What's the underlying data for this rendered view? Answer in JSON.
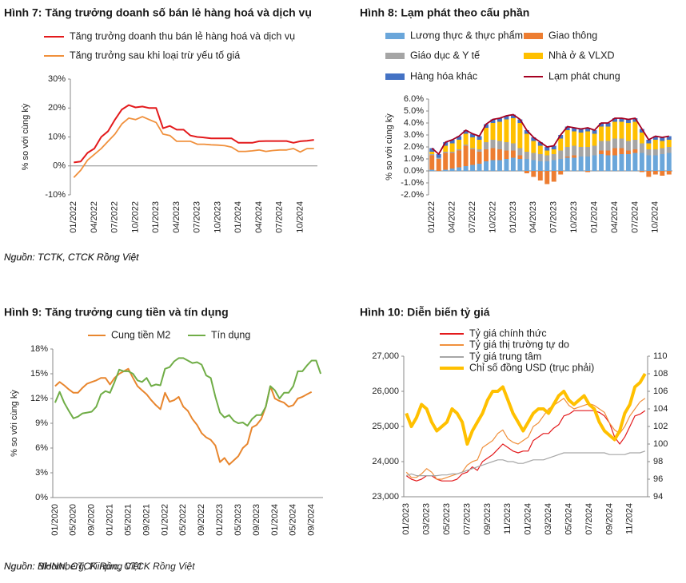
{
  "chart_data": [
    {
      "type": "line",
      "title": "Hình 7: Tăng trưởng doanh số bán lẻ hàng hoá và dịch vụ",
      "y_label": "% so với cùng kỳ",
      "source": "Nguồn: TCTK, CTCK Rồng Việt",
      "categories": [
        "01/2022",
        null,
        null,
        "04/2022",
        null,
        null,
        "07/2022",
        null,
        null,
        "10/2022",
        null,
        null,
        "01/2023",
        null,
        null,
        "04/2023",
        null,
        null,
        "07/2023",
        null,
        null,
        "10/2023",
        null,
        null,
        "01/2024",
        null,
        null,
        "04/2024",
        null,
        null,
        "07/2024",
        null,
        null,
        "10/2024",
        null,
        null
      ],
      "series": [
        {
          "name": "Tăng trưởng doanh thu bán lẻ hàng hoá và dịch vụ",
          "color": "#e31a1c",
          "values": [
            1.2,
            1.5,
            4.5,
            6,
            10,
            12,
            16,
            19.5,
            21,
            20.2,
            20.5,
            20,
            20,
            13,
            13.8,
            12.5,
            12.5,
            10.5,
            10,
            9.8,
            9.5,
            9.5,
            9.5,
            9.5,
            8,
            8,
            8,
            8.5,
            8.6,
            8.6,
            8.6,
            8.6,
            8,
            8.5,
            8.7,
            9
          ]
        },
        {
          "name": "Tăng trưởng sau khi loại trừ yếu tố giá",
          "color": "#f0903c",
          "values": [
            -4,
            -1.5,
            2,
            4,
            6,
            8.5,
            11,
            14.5,
            16.5,
            16,
            17,
            16,
            15,
            11,
            10.5,
            8.5,
            8.5,
            8.5,
            7.5,
            7.5,
            7.3,
            7.2,
            7,
            6.5,
            5,
            5,
            5.2,
            5.5,
            5,
            5.3,
            5.5,
            5.5,
            6,
            4.8,
            6,
            6
          ]
        }
      ],
      "ylim": [
        -10,
        30
      ],
      "yticks": [
        {
          "value": -10,
          "label": "-10%"
        },
        {
          "value": 0,
          "label": "0%"
        },
        {
          "value": 10,
          "label": "10%"
        },
        {
          "value": 20,
          "label": "20%"
        },
        {
          "value": 30,
          "label": "30%"
        }
      ],
      "grid": false
    },
    {
      "type": "bar",
      "stacked": true,
      "title": "Hình 8: Lạm phát theo cấu phần",
      "y_label": "% so với cùng kỳ",
      "source": "Nguồn: TCTK, CTCK Rồng Việt",
      "categories": [
        "01/2022",
        null,
        null,
        "04/2022",
        null,
        null,
        "07/2022",
        null,
        null,
        "10/2022",
        null,
        null,
        "01/2023",
        null,
        null,
        "04/2023",
        null,
        null,
        "07/2023",
        null,
        null,
        "10/2023",
        null,
        null,
        "01/2024",
        null,
        null,
        "04/2024",
        null,
        null,
        "07/2024",
        null,
        null,
        "10/2024",
        null,
        null
      ],
      "series": [
        {
          "name": "Lương thực & thực phẩm",
          "color": "#6aa6da",
          "values": [
            0.1,
            0,
            0.1,
            0.2,
            0.3,
            0.4,
            0.5,
            0.6,
            0.8,
            0.9,
            0.9,
            1.0,
            1.1,
            1.0,
            1.0,
            0.9,
            0.8,
            0.8,
            0.9,
            1.0,
            1.1,
            1.1,
            1.2,
            1.2,
            1.3,
            1.4,
            1.3,
            1.3,
            1.4,
            1.4,
            1.5,
            1.5,
            1.3,
            1.3,
            1.4,
            1.5
          ]
        },
        {
          "name": "Giao thông",
          "color": "#ed7d31",
          "values": [
            1.2,
            1.0,
            1.4,
            1.3,
            1.4,
            1.7,
            1.3,
            1.0,
            1.0,
            1.0,
            0.9,
            0.7,
            0.6,
            0.3,
            -0.2,
            -0.5,
            -0.8,
            -1.1,
            -0.9,
            -0.3,
            0.1,
            0.2,
            0,
            -0.1,
            0,
            0.3,
            0.4,
            0.6,
            0.5,
            0.3,
            0.3,
            -0.1,
            -0.5,
            -0.3,
            -0.4,
            -0.3
          ]
        },
        {
          "name": "Giáo dục & Y tế",
          "color": "#a5a5a5",
          "values": [
            0.1,
            0.1,
            0.1,
            0.1,
            0.1,
            0.1,
            0.1,
            0.2,
            0.6,
            0.7,
            0.7,
            0.7,
            0.6,
            0.6,
            0.6,
            0.6,
            0.6,
            0.5,
            0.5,
            0.7,
            0.8,
            0.8,
            0.8,
            0.8,
            0.8,
            0.8,
            0.8,
            0.8,
            0.8,
            0.8,
            0.8,
            0.8,
            0.5,
            0.5,
            0.5,
            0.5
          ]
        },
        {
          "name": "Nhà ở & VLXD",
          "color": "#ffc000",
          "values": [
            0.2,
            0,
            0.5,
            0.7,
            0.8,
            0.9,
            0.9,
            0.8,
            1.2,
            1.4,
            1.6,
            1.9,
            2.1,
            2.1,
            1.5,
            1.0,
            0.7,
            0.4,
            0.4,
            1.0,
            1.4,
            1.2,
            1.2,
            1.3,
            1.0,
            1.2,
            1.2,
            1.4,
            1.4,
            1.5,
            1.5,
            0.9,
            0.5,
            0.8,
            0.6,
            0.6
          ]
        },
        {
          "name": "Hàng hóa khác",
          "color": "#4472c4",
          "values": [
            0.3,
            0.3,
            0.3,
            0.3,
            0.3,
            0.3,
            0.3,
            0.3,
            0.3,
            0.3,
            0.3,
            0.3,
            0.3,
            0.3,
            0.3,
            0.3,
            0.3,
            0.3,
            0.3,
            0.3,
            0.3,
            0.3,
            0.3,
            0.3,
            0.3,
            0.3,
            0.3,
            0.3,
            0.3,
            0.3,
            0.3,
            0.3,
            0.3,
            0.3,
            0.3,
            0.3
          ]
        },
        {
          "name": "Lạm phát chung",
          "color": "#a50021",
          "type": "line",
          "values": [
            1.9,
            1.4,
            2.4,
            2.6,
            2.9,
            3.4,
            3.1,
            2.9,
            3.9,
            4.3,
            4.4,
            4.6,
            4.7,
            4.3,
            3.4,
            2.8,
            2.4,
            2.0,
            2.1,
            3.0,
            3.7,
            3.6,
            3.5,
            3.6,
            3.4,
            4.0,
            4.0,
            4.4,
            4.4,
            4.3,
            4.4,
            3.5,
            2.6,
            2.9,
            2.8,
            2.9
          ]
        }
      ],
      "ylim": [
        -2,
        6
      ],
      "yticks": [
        {
          "value": -2,
          "label": "-2.0%"
        },
        {
          "value": -1,
          "label": "-1.0%"
        },
        {
          "value": 0,
          "label": "0.0%"
        },
        {
          "value": 1,
          "label": "1.0%"
        },
        {
          "value": 2,
          "label": "2.0%"
        },
        {
          "value": 3,
          "label": "3.0%"
        },
        {
          "value": 4,
          "label": "4.0%"
        },
        {
          "value": 5,
          "label": "5.0%"
        },
        {
          "value": 6,
          "label": "6.0%"
        }
      ],
      "grid": false
    },
    {
      "type": "line",
      "title": "Hình 9: Tăng trưởng cung tiền và tín dụng",
      "y_label": "% so với cùng kỳ",
      "source": "Nguồn: NHNN, CTCK Rồng Việt",
      "categories": [
        "01/2020",
        null,
        null,
        null,
        "05/2020",
        null,
        null,
        null,
        "09/2020",
        null,
        null,
        null,
        "01/2021",
        null,
        null,
        null,
        "05/2021",
        null,
        null,
        null,
        "09/2021",
        null,
        null,
        null,
        "01/2022",
        null,
        null,
        null,
        "05/2022",
        null,
        null,
        null,
        "09/2022",
        null,
        null,
        null,
        "01/2023",
        null,
        null,
        null,
        "05/2023",
        null,
        null,
        null,
        "09/2023",
        null,
        null,
        null,
        "01/2024",
        null,
        null,
        null,
        "05/2024",
        null,
        null,
        null,
        "09/2024",
        null,
        null
      ],
      "series": [
        {
          "name": "Cung tiền M2",
          "color": "#e8862e",
          "values": [
            13.5,
            14.0,
            13.6,
            13.1,
            12.7,
            12.7,
            13.3,
            13.8,
            14.0,
            14.2,
            14.5,
            14.5,
            13.7,
            14.5,
            15.0,
            15.3,
            15.6,
            14.5,
            13.5,
            13.0,
            12.5,
            11.8,
            11.2,
            10.7,
            12.7,
            11.6,
            11.8,
            12.2,
            11.0,
            10.5,
            9.5,
            8.8,
            7.8,
            7.3,
            7.0,
            6.3,
            4.3,
            4.8,
            4.0,
            4.5,
            5.0,
            6.0,
            6.5,
            8.5,
            8.8,
            9.5,
            11.0,
            13.5,
            12.0,
            11.7,
            11.5,
            11.0,
            11.2,
            12.0,
            12.2,
            12.5,
            12.8,
            null,
            null
          ]
        },
        {
          "name": "Tín dụng",
          "color": "#70ad47",
          "values": [
            11.5,
            12.8,
            11.5,
            10.5,
            9.6,
            9.8,
            10.2,
            10.3,
            10.4,
            11.0,
            12.5,
            12.9,
            12.7,
            14.0,
            15.5,
            15.3,
            15.3,
            15.0,
            14.2,
            14.0,
            14.5,
            13.5,
            13.7,
            13.6,
            15.6,
            15.8,
            16.5,
            16.9,
            16.9,
            16.6,
            16.3,
            16.4,
            16.1,
            14.8,
            14.5,
            12.2,
            10.3,
            9.7,
            10.0,
            9.3,
            9.0,
            9.1,
            8.7,
            9.5,
            10.0,
            10.0,
            11.0,
            13.5,
            13.0,
            12.0,
            12.7,
            12.7,
            13.5,
            15.3,
            15.3,
            16.0,
            16.6,
            16.6,
            15.0
          ]
        }
      ],
      "ylim": [
        0,
        18
      ],
      "yticks": [
        {
          "value": 0,
          "label": "0%"
        },
        {
          "value": 3,
          "label": "3%"
        },
        {
          "value": 6,
          "label": "6%"
        },
        {
          "value": 9,
          "label": "9%"
        },
        {
          "value": 12,
          "label": "12%"
        },
        {
          "value": 15,
          "label": "15%"
        },
        {
          "value": 18,
          "label": "18%"
        }
      ],
      "grid": false
    },
    {
      "type": "line",
      "title": "Hình 10: Diễn biến tỷ giá",
      "source": "Nguồn: Bloomberg, Fiinpro, CTCK Rồng Việt",
      "categories": [
        "01/2023",
        null,
        null,
        null,
        "03/2023",
        null,
        null,
        null,
        "05/2023",
        null,
        null,
        null,
        "07/2023",
        null,
        null,
        null,
        "09/2023",
        null,
        null,
        null,
        "11/2023",
        null,
        null,
        null,
        "01/2024",
        null,
        null,
        null,
        "03/2024",
        null,
        null,
        null,
        "05/2024",
        null,
        null,
        null,
        "07/2024",
        null,
        null,
        null,
        "09/2024",
        null,
        null,
        null,
        "11/2024",
        null,
        null,
        null
      ],
      "series": [
        {
          "name": "Tỷ giá chính thức",
          "color": "#e31a1c",
          "values": [
            23600,
            23500,
            23450,
            23500,
            23600,
            23600,
            23500,
            23450,
            23450,
            23450,
            23500,
            23650,
            23700,
            23850,
            23750,
            24000,
            24100,
            24200,
            24350,
            24500,
            24400,
            24300,
            24250,
            24300,
            24300,
            24600,
            24700,
            24800,
            24800,
            24950,
            25050,
            25300,
            25350,
            25450,
            25450,
            25450,
            25450,
            25450,
            25400,
            25300,
            25100,
            24700,
            24500,
            24700,
            25000,
            25300,
            25350,
            25450
          ]
        },
        {
          "name": "Tỷ giá thị trường tự do",
          "color": "#f0903c",
          "values": [
            23700,
            23550,
            23550,
            23650,
            23800,
            23700,
            23500,
            23500,
            23550,
            23600,
            23650,
            23700,
            23900,
            24000,
            24050,
            24400,
            24500,
            24600,
            24800,
            24900,
            24650,
            24550,
            24500,
            24600,
            24700,
            25000,
            25100,
            25300,
            25500,
            25600,
            25700,
            25800,
            25600,
            25500,
            25550,
            25600,
            25650,
            25600,
            25500,
            25400,
            25100,
            24900,
            24800,
            25000,
            25300,
            25500,
            25700,
            25800
          ]
        },
        {
          "name": "Tỷ giá trung tâm",
          "color": "#a6a6a6",
          "values": [
            23600,
            23650,
            23600,
            23600,
            23600,
            23600,
            23600,
            23620,
            23620,
            23650,
            23650,
            23700,
            23750,
            23800,
            23850,
            23900,
            23950,
            24000,
            24050,
            24050,
            24000,
            24000,
            23950,
            23950,
            24000,
            24050,
            24050,
            24050,
            24100,
            24150,
            24200,
            24250,
            24250,
            24250,
            24250,
            24250,
            24250,
            24250,
            24250,
            24250,
            24200,
            24200,
            24200,
            24200,
            24250,
            24250,
            24250,
            24300
          ]
        },
        {
          "name": "Chỉ số đồng USD (trục phải)",
          "color": "#ffc000",
          "axis": "y2",
          "values": [
            103.5,
            102,
            103,
            104.5,
            104,
            102.5,
            101.5,
            102,
            102.5,
            104,
            103.5,
            102.5,
            100,
            101.5,
            102.5,
            103.5,
            105,
            106,
            106,
            106.5,
            105,
            103.5,
            102.5,
            101.5,
            102.5,
            103.5,
            104,
            104,
            103.5,
            104.5,
            105.5,
            106,
            105,
            104.5,
            105,
            105.5,
            104.5,
            104,
            102.5,
            101.5,
            101,
            100.5,
            101.5,
            103.5,
            104.5,
            106.5,
            107,
            108
          ]
        }
      ],
      "ylim": [
        23000,
        27000
      ],
      "yticks": [
        {
          "value": 23000,
          "label": "23,000"
        },
        {
          "value": 24000,
          "label": "24,000"
        },
        {
          "value": 25000,
          "label": "25,000"
        },
        {
          "value": 26000,
          "label": "26,000"
        },
        {
          "value": 27000,
          "label": "27,000"
        }
      ],
      "y2lim": [
        94,
        110
      ],
      "y2ticks": [
        94,
        96,
        98,
        100,
        102,
        104,
        106,
        108,
        110
      ],
      "grid": false
    }
  ]
}
